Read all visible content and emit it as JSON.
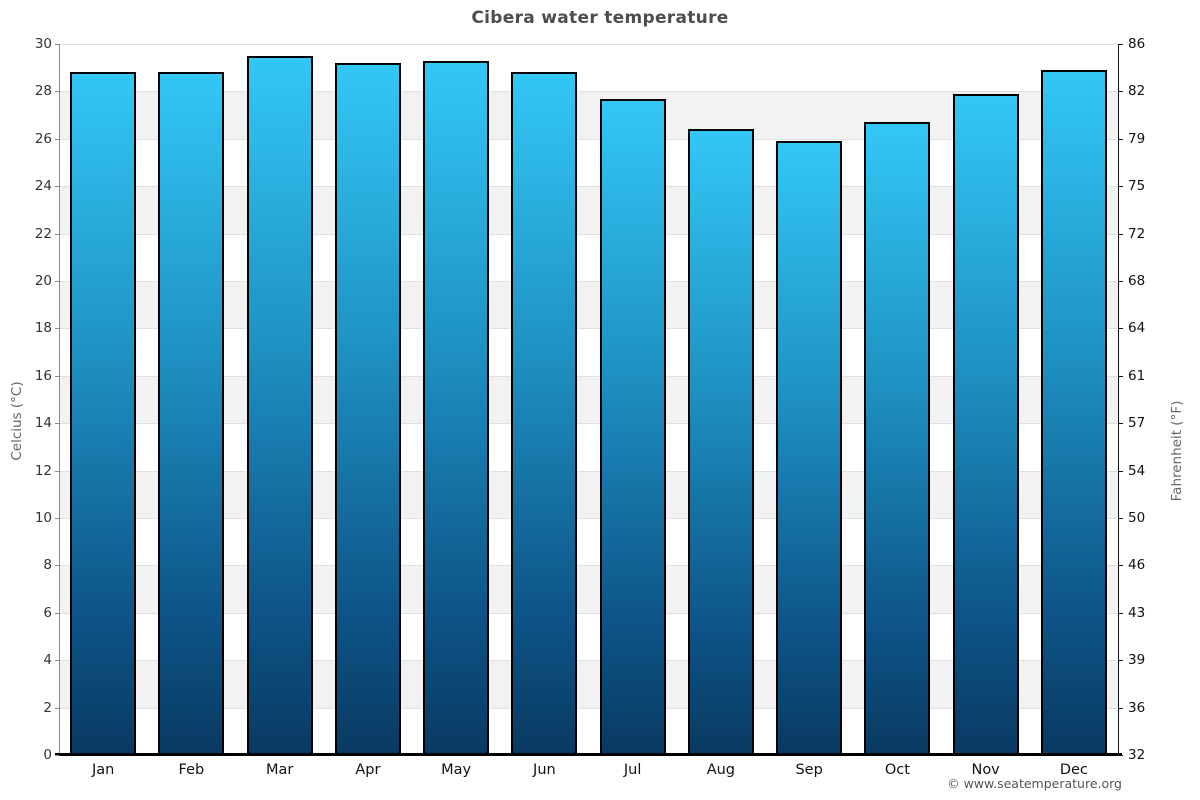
{
  "footer": "© www.seatemperature.org",
  "chart_data": {
    "type": "bar",
    "title": "Cibera water temperature",
    "categories": [
      "Jan",
      "Feb",
      "Mar",
      "Apr",
      "May",
      "Jun",
      "Jul",
      "Aug",
      "Sep",
      "Oct",
      "Nov",
      "Dec"
    ],
    "values": [
      28.8,
      28.8,
      29.5,
      29.2,
      29.3,
      28.8,
      27.7,
      26.4,
      25.9,
      26.7,
      27.9,
      28.9
    ],
    "ylabel_left": "Celcius (°C)",
    "ylabel_right": "Fahrenheit (°F)",
    "ylim_left": [
      0,
      30
    ],
    "yticks_left": [
      0,
      2,
      4,
      6,
      8,
      10,
      12,
      14,
      16,
      18,
      20,
      22,
      24,
      26,
      28,
      30
    ],
    "yticks_right_labels": [
      32,
      36,
      39,
      43,
      46,
      50,
      54,
      57,
      61,
      64,
      68,
      72,
      75,
      79,
      82,
      86
    ],
    "grid": "horizontal-bands-alternating",
    "legend": "none",
    "colors": {
      "bar_gradient_top": "#33c7f6",
      "bar_gradient_bottom": "#093a62",
      "bar_border": "#000000",
      "band_alt": "#f2f2f2",
      "band_main": "#ffffff",
      "gridline": "#e0e0e0",
      "axis_left": "#888888",
      "axis_right": "#111111",
      "baseline": "#000000",
      "title_text": "#4d4d4d",
      "axis_title_text": "#666666",
      "tick_text": "#333333"
    }
  }
}
